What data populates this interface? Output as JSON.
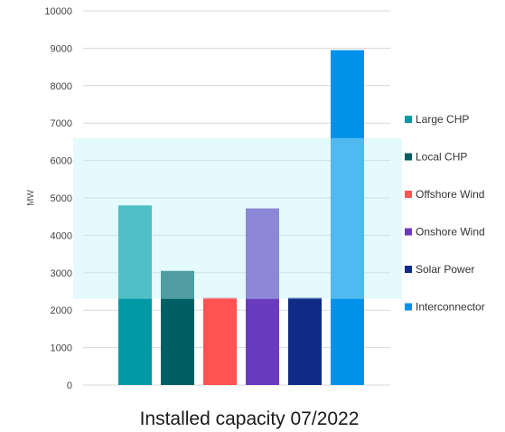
{
  "chart_data": {
    "type": "bar",
    "title": "Installed capacity 07/2022",
    "ylabel": "MW",
    "xlabel": "",
    "ylim": [
      0,
      10000
    ],
    "yticks": [
      0,
      1000,
      2000,
      3000,
      4000,
      5000,
      6000,
      7000,
      8000,
      9000,
      10000
    ],
    "grid": true,
    "legend_position": "right",
    "highlight_band": {
      "from": 2300,
      "to": 6600,
      "color": "#bff3f7"
    },
    "series": [
      {
        "name": "Large CHP",
        "value": 4800,
        "color": "#0099a4"
      },
      {
        "name": "Local CHP",
        "value": 3050,
        "color": "#005f63"
      },
      {
        "name": "Offshore Wind",
        "value": 2330,
        "color": "#ff5252"
      },
      {
        "name": "Onshore Wind",
        "value": 4720,
        "color": "#6a3bbd"
      },
      {
        "name": "Solar Power",
        "value": 2330,
        "color": "#0f2b85"
      },
      {
        "name": "Interconnector",
        "value": 8950,
        "color": "#0091ea"
      }
    ]
  }
}
